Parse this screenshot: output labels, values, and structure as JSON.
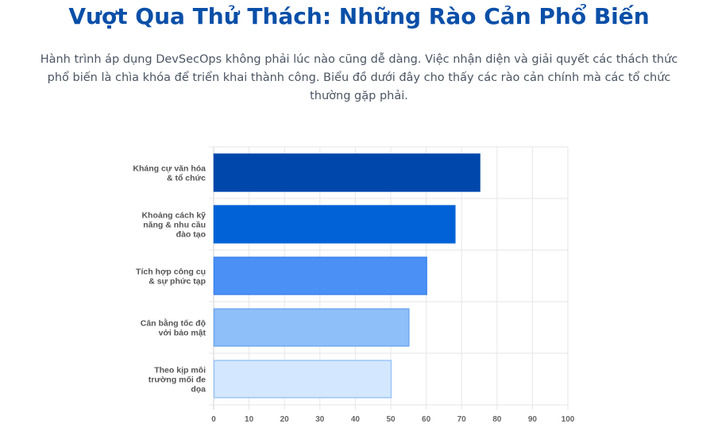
{
  "header": {
    "title": "Vượt Qua Thử Thách: Những Rào Cản Phổ Biến",
    "description": "Hành trình áp dụng DevSecOps không phải lúc nào cũng dễ dàng. Việc nhận diện và giải quyết các thách thức phổ biến là chìa khóa để triển khai thành công. Biểu đồ dưới đây cho thấy các rào cản chính mà các tổ chức thường gặp phải."
  },
  "chart_data": {
    "type": "bar",
    "orientation": "horizontal",
    "categories": [
      [
        "Kháng cự văn hóa",
        "& tổ chức"
      ],
      [
        "Khoảng cách kỹ",
        "năng & nhu cầu",
        "đào tạo"
      ],
      [
        "Tích hợp công cụ",
        "& sự phức tạp"
      ],
      [
        "Cân bằng tốc độ",
        "với bảo mật"
      ],
      [
        "Theo kịp môi",
        "trường mối đe",
        "dọa"
      ]
    ],
    "values": [
      75,
      68,
      60,
      55,
      50
    ],
    "colors": [
      "#0047ab",
      "#0062d6",
      "#4a90f5",
      "#8fbff9",
      "#d3e7ff"
    ],
    "border_colors": [
      "#0047ab",
      "#0062d6",
      "#3b82f0",
      "#6fa8f0",
      "#9cc6f7"
    ],
    "xlim": [
      0,
      100
    ],
    "xticks": [
      0,
      10,
      20,
      30,
      40,
      50,
      60,
      70,
      80,
      90,
      100
    ],
    "grid": true,
    "legend": "none"
  }
}
